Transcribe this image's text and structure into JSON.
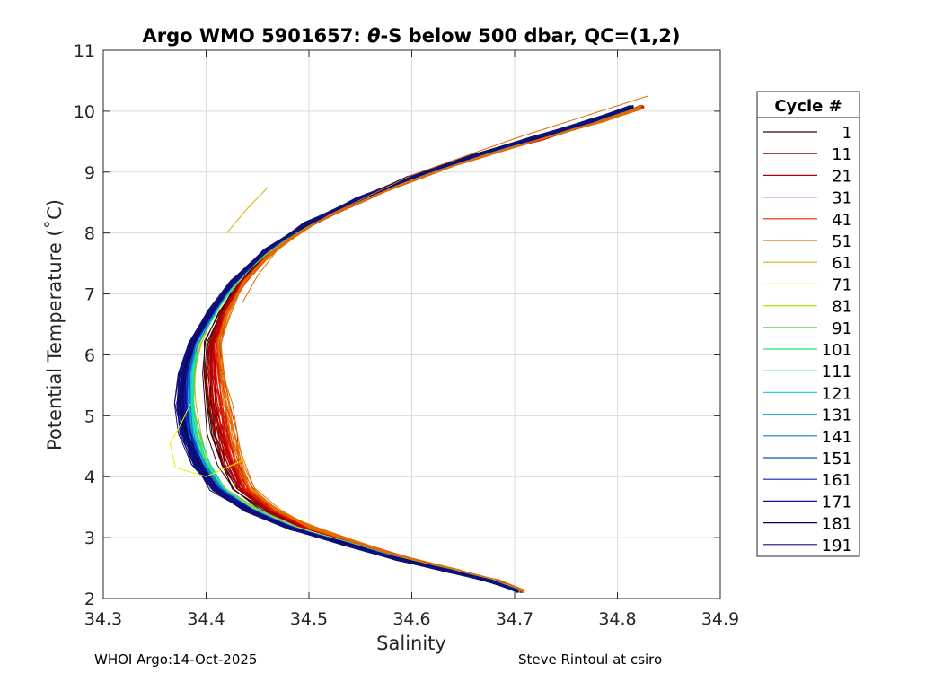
{
  "chart_data": {
    "type": "line",
    "title_prefix": "Argo WMO 5901657: ",
    "title_theta": "θ",
    "title_suffix": "-S below 500 dbar,  QC=(1,2)",
    "xlabel": "Salinity",
    "ylabel": "Potential Temperature (˚C)",
    "xlim": [
      34.3,
      34.9
    ],
    "ylim": [
      2,
      11
    ],
    "x_ticks": [
      34.3,
      34.4,
      34.5,
      34.6,
      34.7,
      34.8,
      34.9
    ],
    "x_tick_labels": [
      "34.3",
      "34.4",
      "34.5",
      "34.6",
      "34.7",
      "34.8",
      "34.9"
    ],
    "y_ticks": [
      2,
      3,
      4,
      5,
      6,
      7,
      8,
      9,
      10,
      11
    ],
    "y_tick_labels": [
      "2",
      "3",
      "4",
      "5",
      "6",
      "7",
      "8",
      "9",
      "10",
      "11"
    ],
    "grid": true,
    "legend": {
      "title": "Cycle #",
      "position": "right",
      "entries": [
        {
          "label": "1",
          "color": "#3a0000"
        },
        {
          "label": "11",
          "color": "#8b0000"
        },
        {
          "label": "21",
          "color": "#b00000"
        },
        {
          "label": "31",
          "color": "#d40000"
        },
        {
          "label": "41",
          "color": "#e02a00"
        },
        {
          "label": "51",
          "color": "#e07000"
        },
        {
          "label": "61",
          "color": "#d8b000"
        },
        {
          "label": "71",
          "color": "#f0f000"
        },
        {
          "label": "81",
          "color": "#a8e400"
        },
        {
          "label": "91",
          "color": "#40e040"
        },
        {
          "label": "101",
          "color": "#20e080"
        },
        {
          "label": "111",
          "color": "#20e0c0"
        },
        {
          "label": "121",
          "color": "#20d0e8"
        },
        {
          "label": "131",
          "color": "#10b0d8"
        },
        {
          "label": "141",
          "color": "#1080c8"
        },
        {
          "label": "151",
          "color": "#1050c0"
        },
        {
          "label": "161",
          "color": "#1020c0"
        },
        {
          "label": "171",
          "color": "#1010a0"
        },
        {
          "label": "181",
          "color": "#080860"
        },
        {
          "label": "191",
          "color": "#10107a"
        }
      ]
    },
    "series_shape": {
      "description": "approximate theta-S path per cycle family (salinity, potential temperature)",
      "base_path": [
        [
          34.818,
          10.07
        ],
        [
          34.78,
          9.85
        ],
        [
          34.72,
          9.55
        ],
        [
          34.66,
          9.25
        ],
        [
          34.6,
          8.9
        ],
        [
          34.55,
          8.55
        ],
        [
          34.5,
          8.15
        ],
        [
          34.46,
          7.7
        ],
        [
          34.43,
          7.2
        ],
        [
          34.41,
          6.7
        ],
        [
          34.395,
          6.2
        ],
        [
          34.39,
          5.7
        ],
        [
          34.39,
          5.2
        ],
        [
          34.395,
          4.7
        ],
        [
          34.405,
          4.2
        ],
        [
          34.42,
          3.8
        ],
        [
          34.45,
          3.45
        ],
        [
          34.49,
          3.15
        ],
        [
          34.54,
          2.9
        ],
        [
          34.59,
          2.65
        ],
        [
          34.64,
          2.45
        ],
        [
          34.68,
          2.28
        ],
        [
          34.705,
          2.12
        ]
      ],
      "red_family_offsets": [
        0.018,
        0.022,
        0.026,
        0.03,
        0.034,
        0.04
      ],
      "blue_family_offsets": [
        -0.002,
        -0.006,
        -0.01,
        -0.013,
        -0.016,
        -0.02
      ]
    }
  },
  "footer": {
    "left": "WHOI Argo:14-Oct-2025",
    "right": "Steve Rintoul at csiro"
  }
}
